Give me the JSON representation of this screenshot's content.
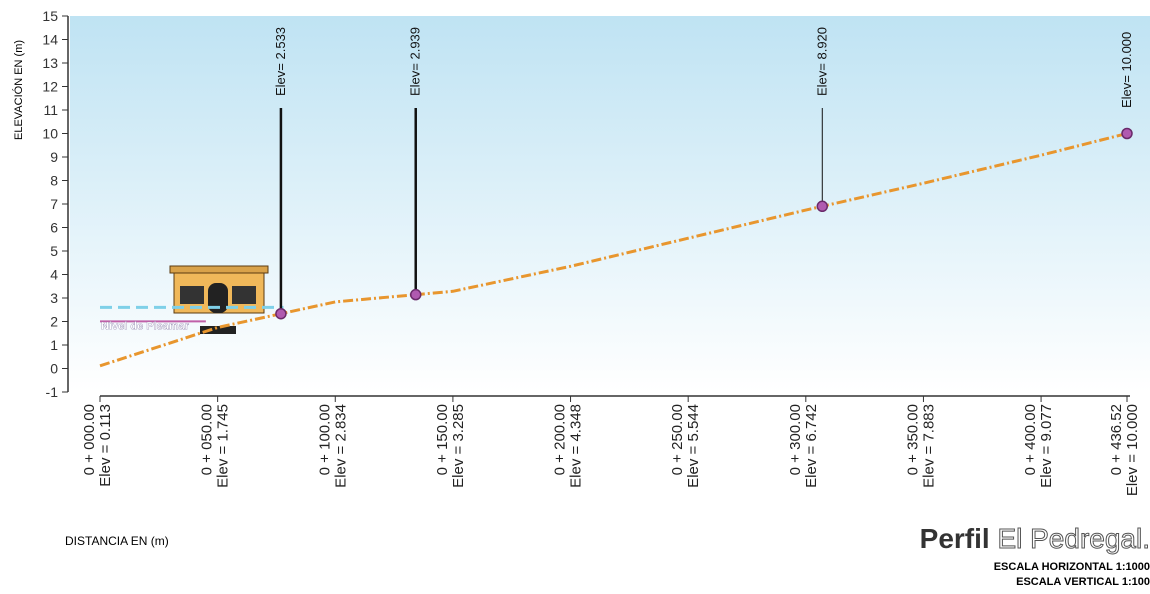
{
  "chart_data": {
    "type": "area",
    "title_parts": [
      "Perfil",
      "El Pedregal."
    ],
    "scale_notes": [
      "ESCALA HORIZONTAL 1:1000",
      "ESCALA VERTICAL 1:100"
    ],
    "x_label": "DISTANCIA EN (m)",
    "y_label": "ELEVACIÓN EN (m)",
    "xlim": [
      0,
      436.52
    ],
    "ylim": [
      -1,
      15
    ],
    "yticks": [
      -1,
      0,
      1,
      2,
      3,
      4,
      5,
      6,
      7,
      8,
      9,
      10,
      11,
      12,
      13,
      14,
      15
    ],
    "xticks": [
      {
        "value": 0,
        "label": "0 + 000.00"
      },
      {
        "value": 50,
        "label": "0 + 050.00"
      },
      {
        "value": 100,
        "label": "0 + 100.00"
      },
      {
        "value": 150,
        "label": "0 + 150.00"
      },
      {
        "value": 200,
        "label": "0 + 200.00"
      },
      {
        "value": 250,
        "label": "0 + 250.00"
      },
      {
        "value": 300,
        "label": "0 + 300.00"
      },
      {
        "value": 350,
        "label": "0 + 350.00"
      },
      {
        "value": 400,
        "label": "0 + 400.00"
      },
      {
        "value": 436.52,
        "label": "0 + 436.52"
      }
    ],
    "series": [
      {
        "name": "Perfil",
        "color": "#e8962e",
        "x": [
          0,
          50,
          100,
          150,
          200,
          250,
          300,
          350,
          400,
          436.52
        ],
        "values": [
          0.113,
          1.745,
          2.834,
          3.285,
          4.348,
          5.544,
          6.742,
          7.883,
          9.077,
          10.0
        ],
        "value_labels": [
          "Elev = 0.113",
          "Elev = 1.745",
          "Elev = 2.834",
          "Elev = 3.285",
          "Elev = 4.348",
          "Elev = 5.544",
          "Elev = 6.742",
          "Elev = 7.883",
          "Elev = 9.077",
          "Elev = 10.000"
        ]
      }
    ],
    "annotations": [
      {
        "x": 76.9,
        "label": "Elev= 2.533"
      },
      {
        "x": 134.2,
        "label": "Elev= 2.939"
      },
      {
        "x": 307,
        "label": "Elev= 8.920"
      },
      {
        "x": 436.52,
        "label": "Elev= 10.000"
      }
    ],
    "high_tide": {
      "label": "Nivel de Pleamar",
      "value": 2.6
    }
  }
}
